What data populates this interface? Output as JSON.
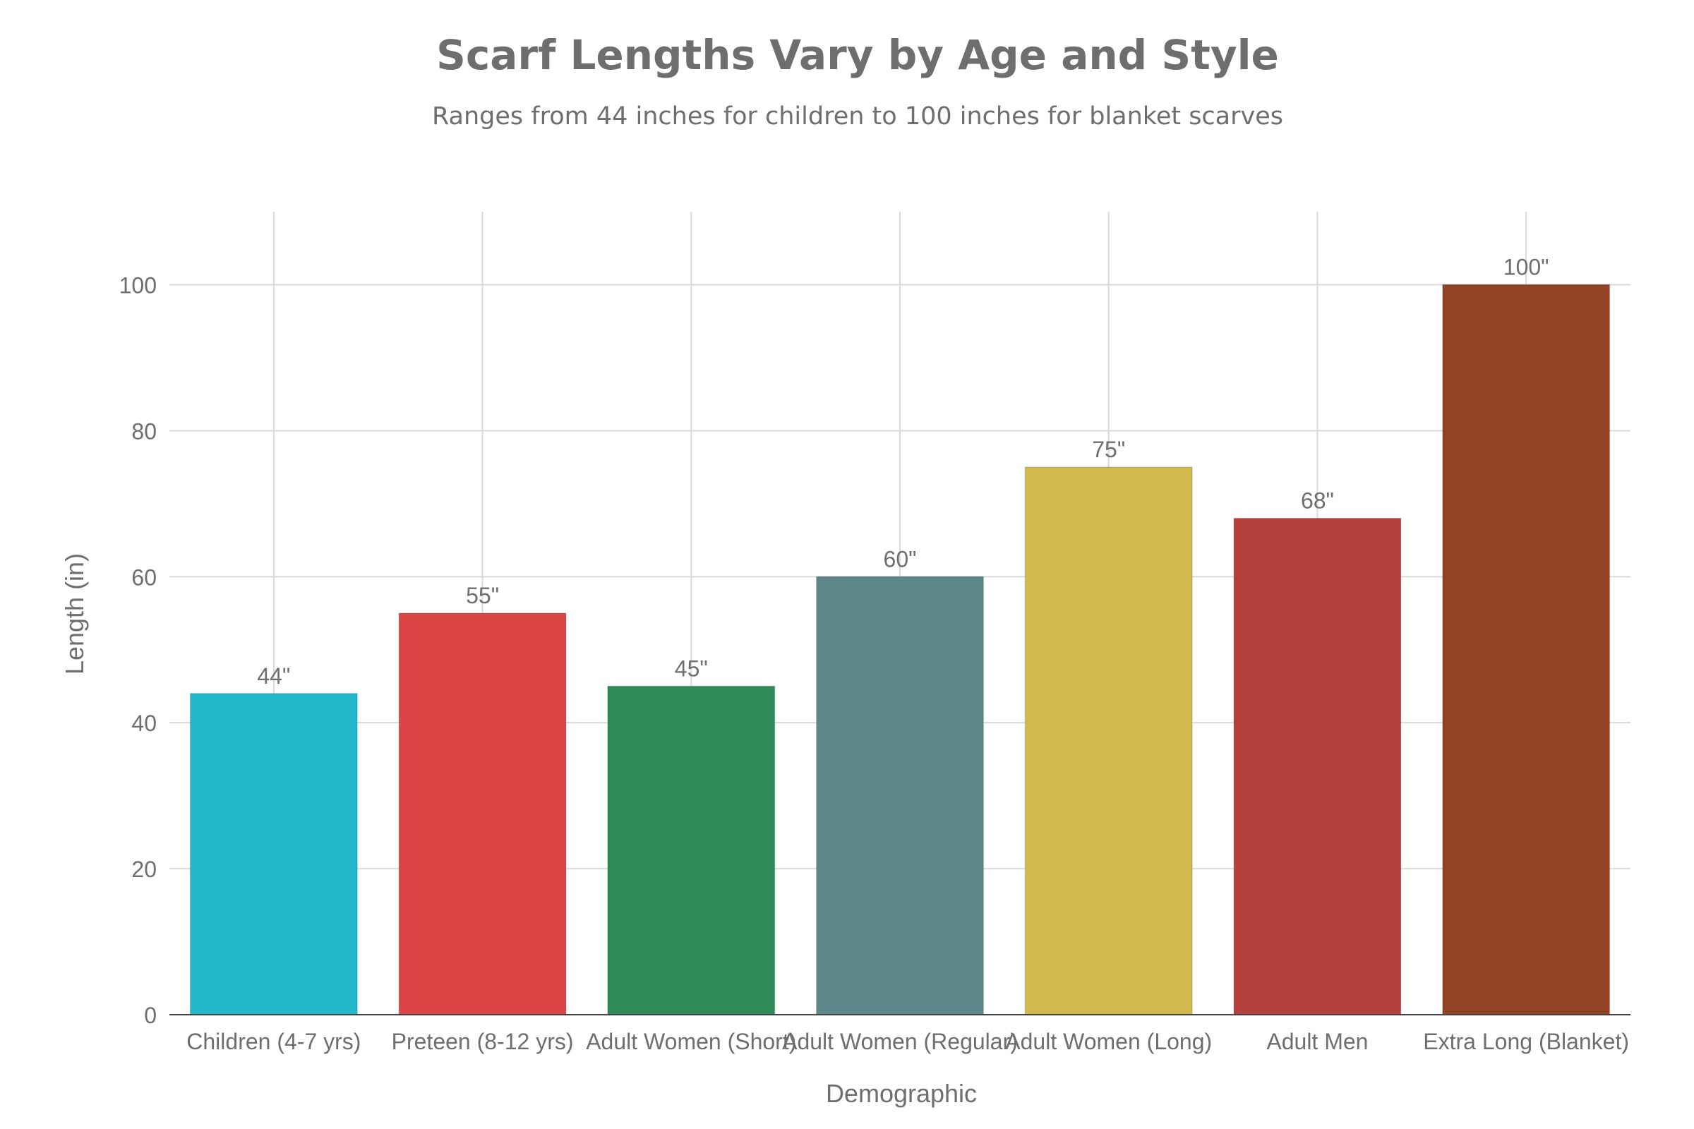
{
  "chart_data": {
    "type": "bar",
    "title": "Scarf Lengths Vary by Age and Style",
    "subtitle": "Ranges from 44 inches for children to 100 inches for blanket scarves",
    "xlabel": "Demographic",
    "ylabel": "Length (in)",
    "categories": [
      "Children (4-7 yrs)",
      "Preteen (8-12 yrs)",
      "Adult Women (Short)",
      "Adult Women (Regular)",
      "Adult Women (Long)",
      "Adult Men",
      "Extra Long (Blanket)"
    ],
    "values": [
      44,
      55,
      45,
      60,
      75,
      68,
      100
    ],
    "data_labels": [
      "44\"",
      "55\"",
      "45\"",
      "60\"",
      "75\"",
      "68\"",
      "100\""
    ],
    "colors": [
      "#21b8cc",
      "#db4545",
      "#2e8b57",
      "#5d878b",
      "#d2b94d",
      "#b3403c",
      "#944225"
    ],
    "ylim": [
      0,
      110
    ],
    "yticks": [
      0,
      20,
      40,
      60,
      80,
      100
    ],
    "grid": true,
    "legend": "none"
  }
}
